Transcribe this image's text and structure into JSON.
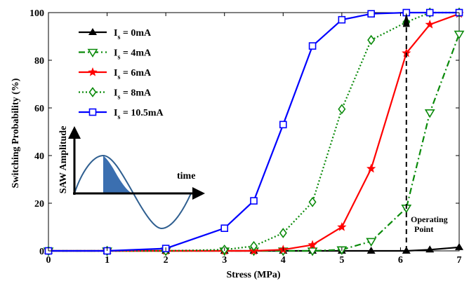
{
  "chart_data": {
    "type": "line",
    "title": "",
    "xlabel": "Stress (MPa)",
    "ylabel": "Switching Probability (%)",
    "xlim": [
      0,
      7
    ],
    "ylim": [
      0,
      100
    ],
    "xticks": [
      "0",
      "1",
      "2",
      "3",
      "4",
      "5",
      "6",
      "7"
    ],
    "yticks": [
      "0",
      "20",
      "40",
      "60",
      "80",
      "100"
    ],
    "grid": false,
    "legend_position": "top-left",
    "series": [
      {
        "name": "Is = 0mA",
        "legend_main": "I",
        "legend_sub": "s",
        "legend_rest": " = 0mA",
        "color": "#000000",
        "line": "solid",
        "marker": "triangle-filled",
        "x": [
          0,
          1,
          2,
          3,
          3.5,
          4,
          4.5,
          5,
          5.5,
          6.1,
          6.5,
          7
        ],
        "y": [
          0,
          0,
          0,
          0,
          0,
          0,
          0,
          0,
          0,
          0,
          0.5,
          1.5
        ]
      },
      {
        "name": "Is = 4mA",
        "legend_main": "I",
        "legend_sub": "s",
        "legend_rest": " = 4mA",
        "color": "#0a8a0a",
        "line": "dashdot",
        "marker": "triangle-down-open",
        "x": [
          0,
          1,
          2,
          3,
          3.5,
          4,
          4.5,
          5,
          5.5,
          6.1,
          6.5,
          7
        ],
        "y": [
          0,
          0,
          0,
          0,
          0,
          0,
          0,
          0.5,
          4,
          18,
          58,
          91
        ]
      },
      {
        "name": "Is = 6mA",
        "legend_main": "I",
        "legend_sub": "s",
        "legend_rest": " = 6mA",
        "color": "#ff0000",
        "line": "solid",
        "marker": "star",
        "x": [
          0,
          1,
          2,
          3,
          3.5,
          4,
          4.5,
          5,
          5.5,
          6.1,
          6.5,
          7
        ],
        "y": [
          0,
          0,
          0,
          0,
          0,
          0.5,
          2.5,
          10,
          34.5,
          83,
          95,
          99.5
        ]
      },
      {
        "name": "Is = 8mA",
        "legend_main": "I",
        "legend_sub": "s",
        "legend_rest": " = 8mA",
        "color": "#0a8a0a",
        "line": "dotted",
        "marker": "diamond-open",
        "x": [
          0,
          1,
          2,
          3,
          3.5,
          4,
          4.5,
          5,
          5.5,
          6.1,
          6.5,
          7
        ],
        "y": [
          0,
          0,
          0,
          0.5,
          2,
          7.5,
          20.5,
          59.5,
          88.5,
          96,
          100,
          100
        ]
      },
      {
        "name": "Is = 10.5mA",
        "legend_main": "I",
        "legend_sub": "s",
        "legend_rest": " = 10.5mA",
        "color": "#0000ff",
        "line": "solid",
        "marker": "square-open",
        "x": [
          0,
          1,
          2,
          3,
          3.5,
          4,
          4.5,
          5,
          5.5,
          6.1,
          6.5,
          7
        ],
        "y": [
          0,
          0,
          1,
          9.5,
          21,
          53,
          86,
          97,
          99.5,
          100,
          100,
          100
        ]
      }
    ],
    "annotations": {
      "operating_point_x": 6.1,
      "operating_point_line1": "Operating",
      "operating_point_line2": "Point",
      "inset_ylabel": "SAW Amplitude",
      "inset_xlabel": "time"
    }
  }
}
